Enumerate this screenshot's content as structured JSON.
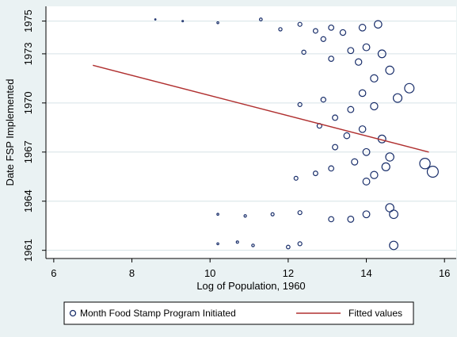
{
  "chart_data": {
    "type": "scatter",
    "title": "",
    "xlabel": "Log of Population, 1960",
    "ylabel": "Date FSP Implemented",
    "xlim": [
      5.8,
      16.3
    ],
    "ylim": [
      1960.5,
      1975.9
    ],
    "x_ticks": [
      6,
      8,
      10,
      12,
      14,
      16
    ],
    "y_ticks": [
      {
        "value": 1961,
        "label": "1961"
      },
      {
        "value": 1964,
        "label": "1964"
      },
      {
        "value": 1967,
        "label": "1967"
      },
      {
        "value": 1970,
        "label": "1970"
      },
      {
        "value": 1973,
        "label": "1973"
      },
      {
        "value": 1975,
        "label": "1975"
      }
    ],
    "grid": "horizontal",
    "legend_position": "bottom",
    "colors": {
      "background": "#eaf2f3",
      "plot_background": "#ffffff",
      "marker": "#1a2f6b",
      "fit_line": "#b03030"
    },
    "marker_note": "marker size proportional to population",
    "series": [
      {
        "name": "Month Food Stamp Program Initiated",
        "kind": "scatter",
        "points": [
          [
            8.6,
            1975.1
          ],
          [
            9.3,
            1975.0
          ],
          [
            10.2,
            1974.9
          ],
          [
            11.3,
            1975.1
          ],
          [
            12.3,
            1974.8
          ],
          [
            13.1,
            1974.6
          ],
          [
            13.9,
            1974.6
          ],
          [
            14.3,
            1974.8
          ],
          [
            13.4,
            1974.3
          ],
          [
            12.7,
            1974.4
          ],
          [
            11.8,
            1974.5
          ],
          [
            12.9,
            1973.9
          ],
          [
            13.6,
            1973.2
          ],
          [
            14.0,
            1973.4
          ],
          [
            14.4,
            1973.0
          ],
          [
            12.4,
            1973.1
          ],
          [
            13.1,
            1972.7
          ],
          [
            13.8,
            1972.5
          ],
          [
            14.6,
            1972.0
          ],
          [
            14.2,
            1971.5
          ],
          [
            15.1,
            1970.9
          ],
          [
            14.8,
            1970.3
          ],
          [
            13.9,
            1970.6
          ],
          [
            14.2,
            1969.8
          ],
          [
            13.6,
            1969.6
          ],
          [
            12.9,
            1970.2
          ],
          [
            12.3,
            1969.9
          ],
          [
            13.2,
            1969.1
          ],
          [
            13.9,
            1968.4
          ],
          [
            14.4,
            1967.8
          ],
          [
            13.5,
            1968.0
          ],
          [
            12.8,
            1968.6
          ],
          [
            13.2,
            1967.3
          ],
          [
            14.0,
            1967.0
          ],
          [
            14.6,
            1966.7
          ],
          [
            13.7,
            1966.4
          ],
          [
            13.1,
            1966.0
          ],
          [
            14.5,
            1966.1
          ],
          [
            15.5,
            1966.3
          ],
          [
            15.7,
            1965.8
          ],
          [
            14.2,
            1965.6
          ],
          [
            14.0,
            1965.2
          ],
          [
            12.7,
            1965.7
          ],
          [
            12.2,
            1965.4
          ],
          [
            14.6,
            1963.6
          ],
          [
            14.7,
            1963.2
          ],
          [
            14.0,
            1963.2
          ],
          [
            13.6,
            1962.9
          ],
          [
            13.1,
            1962.9
          ],
          [
            12.3,
            1963.3
          ],
          [
            11.6,
            1963.2
          ],
          [
            10.9,
            1963.1
          ],
          [
            10.2,
            1963.2
          ],
          [
            14.7,
            1961.3
          ],
          [
            12.3,
            1961.4
          ],
          [
            12.0,
            1961.2
          ],
          [
            11.1,
            1961.3
          ],
          [
            10.7,
            1961.5
          ],
          [
            10.2,
            1961.4
          ]
        ]
      },
      {
        "name": "Fitted values",
        "kind": "line",
        "points": [
          [
            7.0,
            1972.3
          ],
          [
            15.6,
            1967.0
          ]
        ]
      }
    ]
  }
}
